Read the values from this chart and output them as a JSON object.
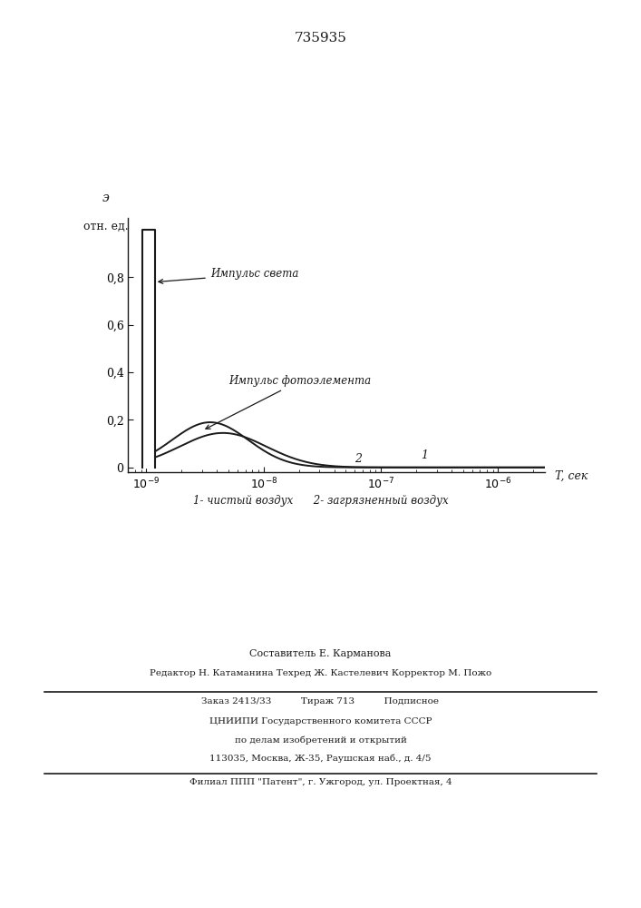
{
  "title": "735935",
  "ylabel_top": "э",
  "ylabel_bottom": "отн. ед.",
  "xlabel": "T, сек",
  "xlabel_bottom": "1- чистый воздух      2- загрязненный воздух",
  "annotation_light": "Импульс света",
  "annotation_photo": "Импульс фотоэлемента",
  "label_1": "1",
  "label_2": "2",
  "footer_line1": "Составитель Е. Карманова",
  "footer_line2": "Редактор Н. Катаманина Техред Ж. Кастелевич Корректор М. Пожо",
  "footer_line3": "Заказ 2413/33          Тираж 713          Подписное",
  "footer_line4": "ЦНИИПИ Государственного комитета СССР",
  "footer_line5": "по делам изобретений и открытий",
  "footer_line6": "113035, Москва, Ж-35, Раушская наб., д. 4/5",
  "footer_line7": "Филиал ППП \"Патент\", г. Ужгород, ул. Проектная, 4",
  "bg_color": "#ffffff",
  "line_color": "#1a1a1a"
}
